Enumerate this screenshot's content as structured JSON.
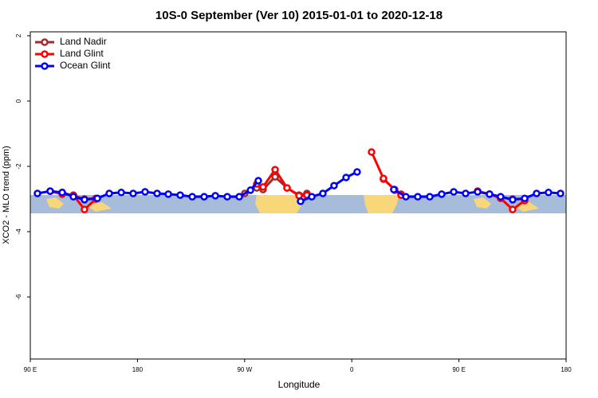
{
  "chart_data": {
    "type": "line",
    "title": "10S-0 September (Ver 10)   2015-01-01 to 2020-12-18",
    "x_label": "Longitude",
    "y_label": "XCO2 - MLO trend (ppm)",
    "xlim": [
      90,
      540
    ],
    "xticks": [
      {
        "value": 90,
        "label": "90 E"
      },
      180,
      {
        "value": 270,
        "label": "90 W"
      },
      {
        "value": 360,
        "label": "0"
      },
      {
        "value": 450,
        "label": "90 E"
      },
      {
        "value": 540,
        "label": "180"
      }
    ],
    "ylim": [
      -7.9,
      2.12
    ],
    "yticks": [
      -6,
      -4,
      -2,
      0,
      2
    ],
    "legend": "top-left",
    "series": [
      {
        "name": "Land Nadir",
        "color": "#a52a2a",
        "x": [
          106.7,
          116.8,
          126.2,
          135.5,
          145,
          200,
          270.1,
          280.2,
          285.5,
          295.6,
          305.6,
          315.7,
          322.3,
          350,
          386.6,
          396,
          401.4,
          430,
          465.7,
          475.7,
          485,
          495.1,
          505.2
        ],
        "values": [
          -2.76,
          -2.8,
          -2.9,
          -3.0,
          -2.98,
          null,
          -2.83,
          -2.66,
          -2.71,
          -2.32,
          -2.66,
          -2.88,
          -2.83,
          null,
          -2.39,
          -2.71,
          -2.85,
          null,
          -2.76,
          -2.85,
          -2.95,
          -3.0,
          -3.0
        ]
      },
      {
        "name": "Land Glint",
        "color": "#ff0000",
        "x": [
          106.7,
          116.8,
          126.2,
          135.5,
          145,
          200,
          280.2,
          285.5,
          295.6,
          305.6,
          315.7,
          322.3,
          350,
          376.6,
          386.6,
          396,
          401.4,
          430,
          465.7,
          475.7,
          485,
          495.1,
          505.2
        ],
        "values": [
          -2.76,
          -2.85,
          -2.88,
          -3.32,
          -3.0,
          null,
          -2.54,
          -2.63,
          -2.1,
          -2.66,
          -2.9,
          -2.88,
          null,
          -1.56,
          -2.37,
          -2.73,
          -2.88,
          null,
          -2.76,
          -2.85,
          -2.98,
          -3.32,
          -3.05
        ]
      },
      {
        "name": "Ocean Glint",
        "color": "#0000ff",
        "x": [
          96,
          106.7,
          116.8,
          126.2,
          135.5,
          146.3,
          156.3,
          166.4,
          176.4,
          186.4,
          196.5,
          205.9,
          215.9,
          226,
          236,
          245.4,
          255.4,
          265.5,
          274.9,
          281.5,
          300,
          317,
          326.4,
          335.7,
          345.1,
          355.2,
          364.5,
          380,
          395.3,
          405.4,
          415.4,
          425.5,
          435.5,
          445.6,
          455.6,
          465.7,
          475.7,
          485,
          495.1,
          505.2,
          515.2,
          525.2,
          535.3
        ],
        "values": [
          -2.83,
          -2.76,
          -2.8,
          -2.93,
          -3.02,
          -2.98,
          -2.83,
          -2.8,
          -2.83,
          -2.78,
          -2.83,
          -2.85,
          -2.88,
          -2.93,
          -2.93,
          -2.9,
          -2.93,
          -2.93,
          -2.73,
          -2.44,
          null,
          -3.07,
          -2.93,
          -2.83,
          -2.59,
          -2.34,
          -2.17,
          null,
          -2.71,
          -2.93,
          -2.93,
          -2.93,
          -2.85,
          -2.78,
          -2.83,
          -2.78,
          -2.85,
          -2.93,
          -3.02,
          -2.98,
          -2.83,
          -2.8,
          -2.83
        ]
      }
    ]
  }
}
